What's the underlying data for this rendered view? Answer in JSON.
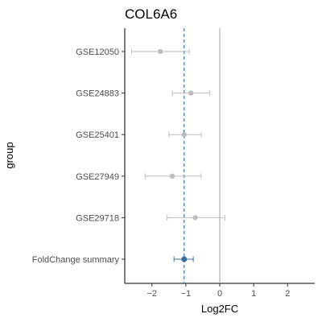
{
  "chart_data": {
    "type": "forest",
    "title": "COL6A6",
    "xlabel": "Log2FC",
    "ylabel": "group",
    "xlim": [
      -2.8,
      2.8
    ],
    "xticks": [
      -2,
      -1,
      0,
      1,
      2
    ],
    "reference_line": 0,
    "summary_line": -1.05,
    "grid": false,
    "colors": {
      "study": "#bdbdbd",
      "summary": "#3a6f9e",
      "reference_line": "#a0a0a0",
      "summary_line": "#3a7ca5"
    },
    "rows": [
      {
        "label": "GSE12050",
        "estimate": -1.75,
        "lower": -2.6,
        "upper": -0.9,
        "kind": "study"
      },
      {
        "label": "GSE24883",
        "estimate": -0.85,
        "lower": -1.4,
        "upper": -0.3,
        "kind": "study"
      },
      {
        "label": "GSE25401",
        "estimate": -1.05,
        "lower": -1.5,
        "upper": -0.55,
        "kind": "study"
      },
      {
        "label": "GSE27949",
        "estimate": -1.4,
        "lower": -2.2,
        "upper": -0.55,
        "kind": "study"
      },
      {
        "label": "GSE29718",
        "estimate": -0.72,
        "lower": -1.55,
        "upper": 0.15,
        "kind": "study"
      },
      {
        "label": "FoldChange summary",
        "estimate": -1.05,
        "lower": -1.35,
        "upper": -0.78,
        "kind": "summary"
      }
    ]
  }
}
